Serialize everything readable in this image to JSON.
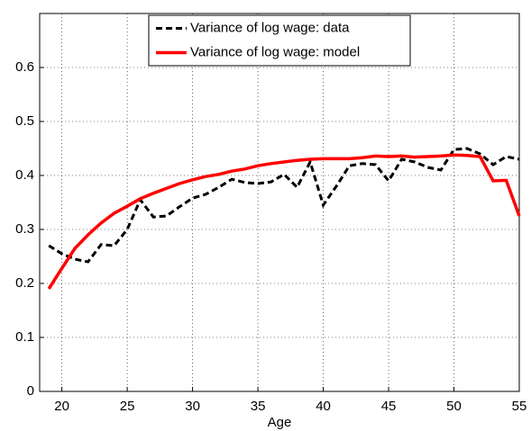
{
  "chart_data": {
    "type": "line",
    "x_label": "Age",
    "x": [
      19,
      20,
      21,
      22,
      23,
      24,
      25,
      26,
      27,
      28,
      29,
      30,
      31,
      32,
      33,
      34,
      35,
      36,
      37,
      38,
      39,
      40,
      41,
      42,
      43,
      44,
      45,
      46,
      47,
      48,
      49,
      50,
      51,
      52,
      53,
      54,
      55
    ],
    "series": [
      {
        "name": "Variance of log wage: data",
        "color": "#000000",
        "dash": true,
        "values": [
          0.27,
          0.255,
          0.245,
          0.24,
          0.272,
          0.27,
          0.3,
          0.355,
          0.323,
          0.325,
          0.342,
          0.358,
          0.365,
          0.378,
          0.393,
          0.387,
          0.385,
          0.388,
          0.402,
          0.378,
          0.425,
          0.345,
          0.38,
          0.418,
          0.422,
          0.42,
          0.39,
          0.43,
          0.425,
          0.415,
          0.41,
          0.448,
          0.45,
          0.44,
          0.42,
          0.435,
          0.43
        ]
      },
      {
        "name": "Variance of log wage: model",
        "color": "#ff0000",
        "dash": false,
        "values": [
          0.19,
          0.228,
          0.265,
          0.29,
          0.312,
          0.33,
          0.343,
          0.357,
          0.367,
          0.376,
          0.385,
          0.392,
          0.398,
          0.402,
          0.408,
          0.412,
          0.418,
          0.422,
          0.425,
          0.428,
          0.43,
          0.431,
          0.431,
          0.431,
          0.433,
          0.436,
          0.435,
          0.436,
          0.434,
          0.435,
          0.436,
          0.438,
          0.437,
          0.435,
          0.39,
          0.391,
          0.325
        ]
      }
    ],
    "xlim": [
      18.3,
      55
    ],
    "xticks": [
      20,
      25,
      30,
      35,
      40,
      45,
      50,
      55
    ],
    "ylim": [
      0,
      0.7
    ],
    "yticks": [
      0,
      0.1,
      0.2,
      0.3,
      0.4,
      0.5,
      0.6
    ],
    "grid": true,
    "legend": "top"
  }
}
